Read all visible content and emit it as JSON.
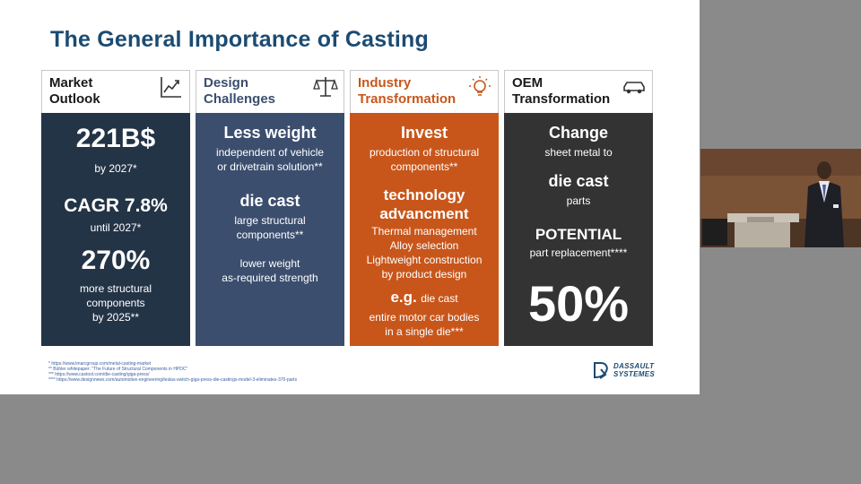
{
  "slide": {
    "title": "The General Importance of Casting",
    "columns": [
      {
        "header": [
          "Market",
          "Outlook"
        ],
        "icon": "chart-icon",
        "items": [
          "221B$",
          "by 2027*",
          "CAGR 7.8%",
          "until 2027*",
          "270%",
          "more structural",
          "components",
          "by 2025**"
        ]
      },
      {
        "header": [
          "Design",
          "Challenges"
        ],
        "icon": "scales-icon",
        "items": [
          "Less weight",
          "independent of vehicle",
          "or drivetrain solution**",
          "die cast",
          "large structural",
          "components**",
          "lower weight",
          "as-required strength"
        ]
      },
      {
        "header": [
          "Industry",
          "Transformation"
        ],
        "icon": "lightbulb-icon",
        "items": [
          "Invest",
          "production of structural",
          "components**",
          "technology",
          "advancment",
          "Thermal management",
          "Alloy selection",
          "Lightweight construction",
          "by product design",
          "e.g.",
          "die cast",
          "entire motor car bodies",
          "in a single die***"
        ]
      },
      {
        "header": [
          "OEM",
          "Transformation"
        ],
        "icon": "car-icon",
        "items": [
          "Change",
          "sheet metal to",
          "die cast",
          "parts",
          "POTENTIAL",
          "part replacement****",
          "50%"
        ]
      }
    ],
    "footnotes": [
      "* https://www.lmarcgroup.com/metal-casting-market",
      "** Bühler whitepaper: \"The Future of Structural Components in HPDC\"",
      "*** https://www.castool.com/die-casting/giga-press/",
      "**** https://www.designnews.com/automotive-engineering/teslas-switch-giga-press-die-castings-model-3-eliminates-370-parts"
    ],
    "logo": [
      "DASSAULT",
      "SYSTEMES"
    ]
  },
  "colors": {
    "title": "#1b4b72",
    "market": "#243447",
    "design": "#3c4e6e",
    "industry": "#c8561b",
    "oem": "#333333"
  }
}
